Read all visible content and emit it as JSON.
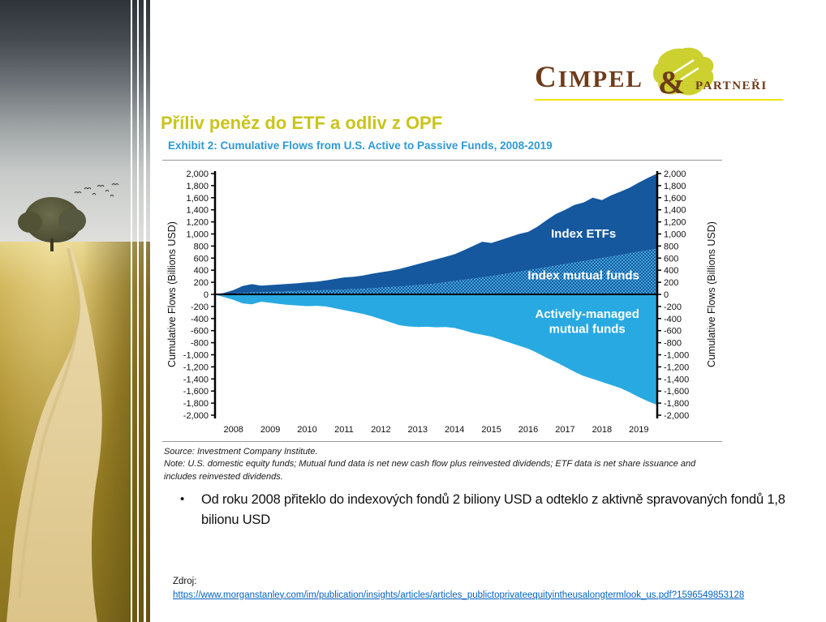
{
  "slide": {
    "title": "Příliv peněz do ETF a odliv z OPF",
    "title_color": "#c9c41c"
  },
  "logo": {
    "name": "CIMPEL",
    "amp": "&",
    "partners": "PARTNEŘI",
    "brand_brown": "#6e3b1b",
    "underline_yellow": "#f0e30c",
    "leaf_green": "#ccd12f"
  },
  "exhibit": {
    "source_line1": "Source: Investment Company Institute.",
    "source_line2": "Note: U.S. domestic equity funds; Mutual fund data is net new cash flow plus reinvested dividends; ETF data is net share issuance and includes reinvested dividends."
  },
  "bullet": {
    "marker": "•",
    "text": "Od roku 2008 přiteklo do indexových fondů 2 biliony USD a odteklo z aktivně spravovaných fondů 1,8 bilionu USD"
  },
  "footer": {
    "label": "Zdroj:",
    "link": "https://www.morganstanley.com/im/publication/insights/articles/articles_publictoprivateequityintheusalongtermlook_us.pdf?1596549853128"
  },
  "chart_data": {
    "type": "area",
    "title": "Exhibit 2: Cumulative Flows from U.S. Active to Passive Funds, 2008-2019",
    "ylabel": "Cumulative Flows (Billions USD)",
    "xlim": [
      2008,
      2020
    ],
    "ylim": [
      -2000,
      2000
    ],
    "y_tick_step": 200,
    "y_tick_labels": [
      "2,000",
      "1,800",
      "1,600",
      "1,400",
      "1,200",
      "1,000",
      "800",
      "600",
      "400",
      "200",
      "0",
      "-200",
      "-400",
      "-600",
      "-800",
      "-1,000",
      "-1,200",
      "-1,400",
      "-1,600",
      "-1,800",
      "-2,000"
    ],
    "x_ticks": [
      "2008",
      "2009",
      "2010",
      "2011",
      "2012",
      "2013",
      "2014",
      "2015",
      "2016",
      "2017",
      "2018",
      "2019"
    ],
    "legend_position": "in-plot labels",
    "grid": false,
    "colors": {
      "etf_dark_blue": "#15589e",
      "active_light_blue": "#29a9e1",
      "hatch_dot": "#4ab5e8",
      "axis": "#000000"
    },
    "x": [
      2008,
      2008.25,
      2008.5,
      2008.75,
      2009,
      2009.25,
      2009.5,
      2009.75,
      2010,
      2010.25,
      2010.5,
      2010.75,
      2011,
      2011.25,
      2011.5,
      2011.75,
      2012,
      2012.25,
      2012.5,
      2012.75,
      2013,
      2013.25,
      2013.5,
      2013.75,
      2014,
      2014.25,
      2014.5,
      2014.75,
      2015,
      2015.25,
      2015.5,
      2015.75,
      2016,
      2016.25,
      2016.5,
      2016.75,
      2017,
      2017.25,
      2017.5,
      2017.75,
      2018,
      2018.25,
      2018.5,
      2018.75,
      2019,
      2019.25,
      2019.5,
      2019.75,
      2020
    ],
    "series": [
      {
        "name": "Index ETFs",
        "style": "solid",
        "stacked_on": "Index mutual funds",
        "values": [
          0,
          20,
          58,
          118,
          140,
          110,
          115,
          120,
          125,
          130,
          140,
          145,
          160,
          180,
          200,
          205,
          220,
          240,
          255,
          270,
          290,
          320,
          345,
          375,
          400,
          420,
          445,
          490,
          540,
          590,
          550,
          575,
          600,
          625,
          635,
          695,
          780,
          855,
          900,
          955,
          970,
          1025,
          960,
          1015,
          1050,
          1085,
          1145,
          1200,
          1245
        ]
      },
      {
        "name": "Index mutual funds",
        "style": "dotted-hatch",
        "values": [
          0,
          5,
          12,
          22,
          30,
          35,
          40,
          45,
          50,
          55,
          60,
          65,
          70,
          75,
          80,
          85,
          90,
          100,
          110,
          120,
          130,
          140,
          155,
          165,
          180,
          200,
          220,
          240,
          260,
          280,
          300,
          325,
          350,
          375,
          400,
          425,
          450,
          475,
          500,
          525,
          550,
          575,
          600,
          625,
          650,
          680,
          705,
          730,
          755
        ]
      },
      {
        "name": "Actively-managed mutual funds",
        "style": "solid",
        "values": [
          -5,
          -45,
          -90,
          -150,
          -165,
          -120,
          -140,
          -160,
          -175,
          -185,
          -195,
          -190,
          -200,
          -230,
          -260,
          -290,
          -320,
          -360,
          -410,
          -460,
          -510,
          -530,
          -540,
          -535,
          -545,
          -540,
          -555,
          -595,
          -640,
          -670,
          -700,
          -750,
          -800,
          -850,
          -900,
          -970,
          -1050,
          -1120,
          -1200,
          -1280,
          -1350,
          -1400,
          -1450,
          -1500,
          -1550,
          -1620,
          -1700,
          -1770,
          -1830
        ]
      }
    ],
    "area_labels": [
      {
        "text": "Index ETFs",
        "x": 2018.0,
        "y": 940
      },
      {
        "text": "Index mutual funds",
        "x": 2018.0,
        "y": 250
      },
      {
        "text": "Actively-managed",
        "x": 2018.1,
        "y": -390
      },
      {
        "text": "mutual funds",
        "x": 2018.1,
        "y": -640
      }
    ]
  }
}
